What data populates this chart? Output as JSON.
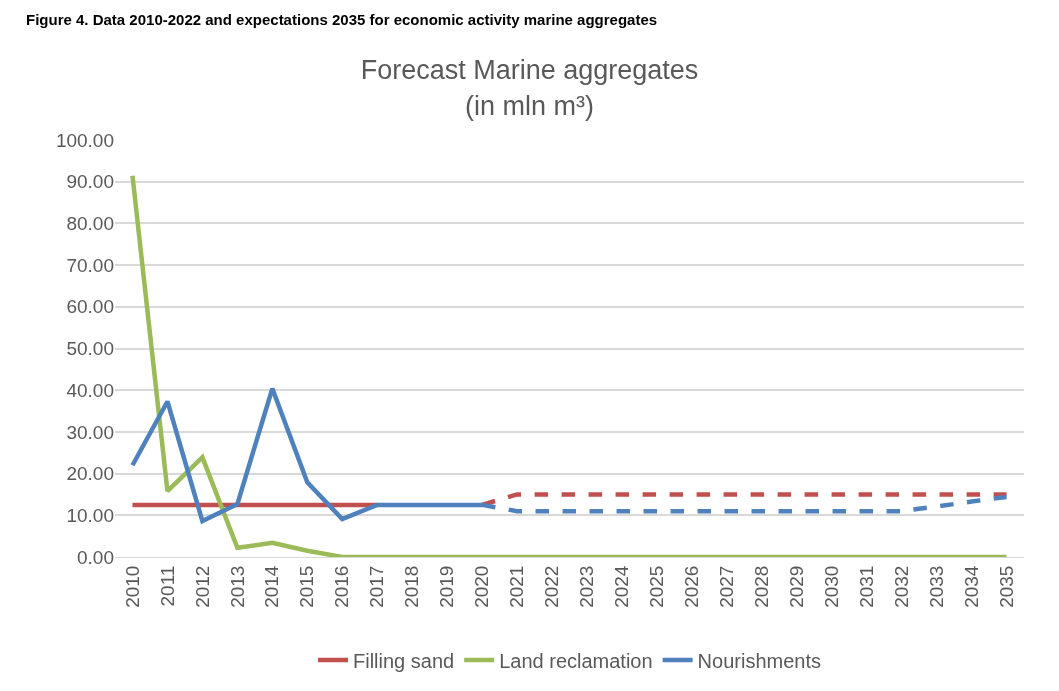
{
  "chart_data": {
    "type": "line",
    "title": "Forecast Marine aggregates\n(in mln m³)",
    "annotations": [
      "Figure 4. Data 2010-2022 and expectations 2035 for economic activity marine aggregates"
    ],
    "categories": [
      "2010",
      "2011",
      "2012",
      "2013",
      "2014",
      "2015",
      "2016",
      "2017",
      "2018",
      "2019",
      "2020",
      "2021",
      "2022",
      "2023",
      "2024",
      "2025",
      "2026",
      "2027",
      "2028",
      "2029",
      "2030",
      "2031",
      "2032",
      "2033",
      "2034",
      "2035"
    ],
    "series": [
      {
        "name": "Filling sand",
        "color": "#c0504d",
        "line_style": "solid",
        "values": [
          12.5,
          12.5,
          12.5,
          12.5,
          12.5,
          12.5,
          12.5,
          12.5,
          null,
          null,
          null,
          null,
          null,
          null,
          null,
          null,
          null,
          null,
          null,
          null,
          null,
          null,
          null,
          null,
          null,
          null
        ]
      },
      {
        "color": "#c0504d",
        "line_style": "dashed",
        "values": [
          null,
          null,
          null,
          null,
          null,
          null,
          null,
          null,
          null,
          null,
          12.5,
          15,
          15,
          15,
          15,
          15,
          15,
          15,
          15,
          15,
          15,
          15,
          15,
          15,
          15,
          15
        ]
      },
      {
        "name": "Land reclamation",
        "color": "#9bbb59",
        "line_style": "solid",
        "values": [
          91.4,
          15.8,
          23.9,
          2.2,
          3.4,
          1.5,
          0,
          0,
          0,
          0,
          0,
          0,
          0,
          0,
          0,
          0,
          0,
          0,
          0,
          0,
          0,
          0,
          0,
          0,
          0,
          0
        ]
      },
      {
        "name": "Nourishments",
        "color": "#4f81bd",
        "line_style": "solid",
        "values": [
          22,
          37.3,
          8.6,
          12.7,
          40.4,
          17.9,
          9.1,
          12.5,
          12.5,
          12.5,
          12.5,
          null,
          null,
          null,
          null,
          null,
          null,
          null,
          null,
          null,
          null,
          null,
          null,
          null,
          null,
          null
        ]
      },
      {
        "color": "#4f81bd",
        "line_style": "dashed",
        "values": [
          null,
          null,
          null,
          null,
          null,
          null,
          null,
          null,
          null,
          null,
          12.5,
          11,
          11,
          11,
          11,
          11,
          11,
          11,
          11,
          11,
          11,
          11,
          11,
          12.1,
          13.3,
          14.4
        ]
      }
    ],
    "ylim": [
      0,
      100
    ],
    "yticks": [
      {
        "value": 0,
        "label": "0.00"
      },
      {
        "value": 10,
        "label": "10.00"
      },
      {
        "value": 20,
        "label": "20.00"
      },
      {
        "value": 30,
        "label": "30.00"
      },
      {
        "value": 40,
        "label": "40.00"
      },
      {
        "value": 50,
        "label": "50.00"
      },
      {
        "value": 60,
        "label": "60.00"
      },
      {
        "value": 70,
        "label": "70.00"
      },
      {
        "value": 80,
        "label": "80.00"
      },
      {
        "value": 90,
        "label": "90.00"
      },
      {
        "value": 100,
        "label": "100.00"
      }
    ],
    "grid": "y",
    "legend": "bottom",
    "marker": "none"
  }
}
